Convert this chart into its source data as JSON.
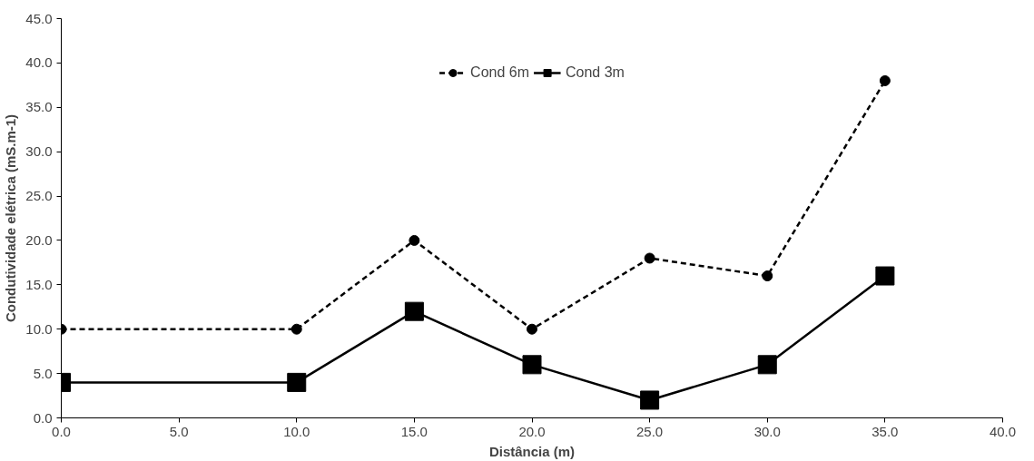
{
  "chart_data": {
    "type": "line",
    "xlabel": "Distância (m)",
    "ylabel": "Condutividade elétrica (mS.m-1)",
    "x": [
      0,
      10,
      15,
      20,
      25,
      30,
      35
    ],
    "series": [
      {
        "name": "Cond 6m",
        "color": "#000000",
        "marker": "circle",
        "line_style": "dashed",
        "values": [
          10,
          10,
          20,
          10,
          18,
          16,
          38
        ]
      },
      {
        "name": "Cond 3m",
        "color": "#000000",
        "marker": "square",
        "line_style": "solid",
        "values": [
          4,
          4,
          12,
          6,
          2,
          6,
          16
        ]
      }
    ],
    "xlim": [
      0,
      40
    ],
    "ylim": [
      0,
      45
    ],
    "xticks": [
      {
        "value": 0,
        "label": "0.0"
      },
      {
        "value": 5,
        "label": "5.0"
      },
      {
        "value": 10,
        "label": "10.0"
      },
      {
        "value": 15,
        "label": "15.0"
      },
      {
        "value": 20,
        "label": "20.0"
      },
      {
        "value": 25,
        "label": "25.0"
      },
      {
        "value": 30,
        "label": "30.0"
      },
      {
        "value": 35,
        "label": "35.0"
      },
      {
        "value": 40,
        "label": "40.0"
      }
    ],
    "yticks": [
      {
        "value": 0,
        "label": "0.0"
      },
      {
        "value": 5,
        "label": "5.0"
      },
      {
        "value": 10,
        "label": "10.0"
      },
      {
        "value": 15,
        "label": "15.0"
      },
      {
        "value": 20,
        "label": "20.0"
      },
      {
        "value": 25,
        "label": "25.0"
      },
      {
        "value": 30,
        "label": "30.0"
      },
      {
        "value": 35,
        "label": "35.0"
      },
      {
        "value": 40,
        "label": "40.0"
      },
      {
        "value": 45,
        "label": "45.0"
      }
    ],
    "grid": false,
    "legend": "top"
  }
}
